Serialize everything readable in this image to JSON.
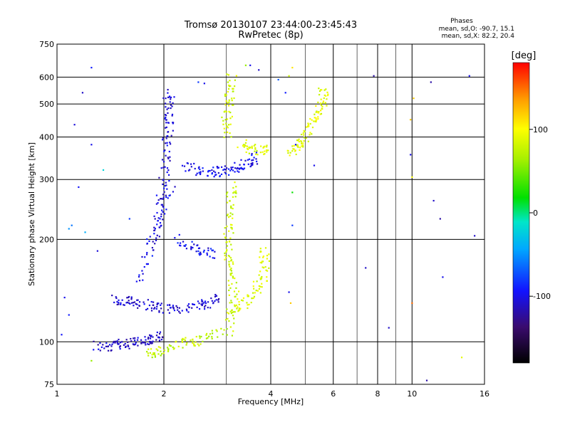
{
  "chart_data": {
    "type": "scatter",
    "title": "Tromsø 20130107 23:44:00-23:45:43",
    "subtitle": "RwPretec (8p)",
    "stats": {
      "heading": "Phases",
      "line1": "mean, sd,O: -90.7, 15.1",
      "line2": "mean, sd,X:  82.2, 20.4"
    },
    "xlabel": "Frequency [MHz]",
    "ylabel": "Stationary phase Virtual Height [km]",
    "xscale": "log",
    "yscale": "log",
    "xlim": [
      1,
      16
    ],
    "ylim": [
      75,
      750
    ],
    "x_ticks": [
      1,
      2,
      4,
      6,
      8,
      10,
      16
    ],
    "x_minor_ticks": [
      3,
      5,
      7,
      9
    ],
    "y_ticks": [
      75,
      100,
      200,
      300,
      400,
      500,
      600,
      750
    ],
    "grid": true,
    "colorbar": {
      "label": "[deg]",
      "range": [
        -180,
        180
      ],
      "ticks": [
        100,
        0,
        -100
      ]
    },
    "traces": [
      {
        "name": "",
        "phase": -110,
        "points": [
          [
            1.3,
            97
          ],
          [
            1.4,
            97
          ],
          [
            1.5,
            98
          ],
          [
            1.6,
            99
          ],
          [
            1.7,
            100
          ],
          [
            1.8,
            101
          ],
          [
            1.9,
            102
          ],
          [
            2.0,
            104
          ]
        ]
      },
      {
        "name": "",
        "phase": -108,
        "points": [
          [
            1.45,
            133
          ],
          [
            1.55,
            132
          ],
          [
            1.65,
            131
          ],
          [
            1.8,
            128
          ],
          [
            1.95,
            126
          ],
          [
            2.1,
            125
          ],
          [
            2.3,
            126
          ],
          [
            2.5,
            128
          ],
          [
            2.7,
            131
          ],
          [
            2.9,
            134
          ]
        ]
      },
      {
        "name": "",
        "phase": -105,
        "points": [
          [
            1.9,
            200
          ],
          [
            1.95,
            250
          ],
          [
            2.0,
            300
          ],
          [
            2.02,
            350
          ],
          [
            2.05,
            400
          ],
          [
            2.07,
            450
          ],
          [
            2.08,
            500
          ],
          [
            2.05,
            540
          ]
        ]
      },
      {
        "name": "",
        "phase": -100,
        "points": [
          [
            2.3,
            330
          ],
          [
            2.5,
            320
          ],
          [
            2.7,
            315
          ],
          [
            2.9,
            318
          ],
          [
            3.1,
            322
          ],
          [
            3.3,
            330
          ],
          [
            3.5,
            340
          ],
          [
            3.7,
            350
          ]
        ]
      },
      {
        "name": "",
        "phase": -100,
        "points": [
          [
            1.7,
            150
          ],
          [
            1.8,
            180
          ],
          [
            1.9,
            210
          ],
          [
            2.0,
            250
          ],
          [
            2.1,
            300
          ]
        ]
      },
      {
        "name": "",
        "phase": -98,
        "points": [
          [
            2.2,
            200
          ],
          [
            2.4,
            190
          ],
          [
            2.6,
            185
          ],
          [
            2.8,
            180
          ]
        ]
      },
      {
        "name": "",
        "phase": 80,
        "points": [
          [
            3.05,
            115
          ],
          [
            3.1,
            125
          ],
          [
            3.15,
            140
          ],
          [
            3.1,
            160
          ],
          [
            3.05,
            180
          ],
          [
            3.05,
            200
          ],
          [
            3.05,
            230
          ],
          [
            3.1,
            260
          ],
          [
            3.1,
            290
          ]
        ]
      },
      {
        "name": "",
        "phase": 82,
        "points": [
          [
            3.0,
            400
          ],
          [
            3.0,
            450
          ],
          [
            3.05,
            500
          ],
          [
            3.1,
            550
          ],
          [
            3.1,
            600
          ]
        ]
      },
      {
        "name": "",
        "phase": 85,
        "points": [
          [
            3.3,
            380
          ],
          [
            3.5,
            370
          ],
          [
            3.7,
            365
          ],
          [
            3.9,
            368
          ]
        ]
      },
      {
        "name": "",
        "phase": 88,
        "points": [
          [
            3.2,
            125
          ],
          [
            3.4,
            130
          ],
          [
            3.6,
            140
          ],
          [
            3.8,
            155
          ],
          [
            3.85,
            170
          ],
          [
            3.8,
            190
          ]
        ]
      },
      {
        "name": "",
        "phase": 90,
        "points": [
          [
            4.5,
            360
          ],
          [
            4.7,
            370
          ],
          [
            4.9,
            390
          ],
          [
            5.1,
            420
          ],
          [
            5.3,
            450
          ],
          [
            5.5,
            480
          ],
          [
            5.7,
            520
          ],
          [
            5.6,
            560
          ]
        ]
      },
      {
        "name": "",
        "phase": 75,
        "points": [
          [
            1.8,
            93
          ],
          [
            1.9,
            93
          ],
          [
            2.1,
            97
          ],
          [
            2.3,
            100
          ],
          [
            2.5,
            100
          ],
          [
            2.7,
            105
          ],
          [
            3.2,
            108
          ]
        ]
      }
    ],
    "scatter_points": [
      [
        1.25,
        640,
        -90
      ],
      [
        1.18,
        540,
        -110
      ],
      [
        1.12,
        435,
        -105
      ],
      [
        1.25,
        380,
        -100
      ],
      [
        1.15,
        285,
        -95
      ],
      [
        1.1,
        220,
        -60
      ],
      [
        1.08,
        215,
        -50
      ],
      [
        1.2,
        210,
        -40
      ],
      [
        1.3,
        185,
        -105
      ],
      [
        1.05,
        135,
        -100
      ],
      [
        1.08,
        120,
        -90
      ],
      [
        1.03,
        105,
        -95
      ],
      [
        1.25,
        88,
        60
      ],
      [
        1.35,
        320,
        -20
      ],
      [
        1.6,
        230,
        -80
      ],
      [
        2.6,
        575,
        -100
      ],
      [
        2.5,
        580,
        -80
      ],
      [
        3.5,
        650,
        -100
      ],
      [
        3.7,
        630,
        -110
      ],
      [
        3.4,
        650,
        60
      ],
      [
        4.5,
        605,
        80
      ],
      [
        4.6,
        640,
        110
      ],
      [
        4.2,
        590,
        -70
      ],
      [
        4.4,
        540,
        -90
      ],
      [
        4.7,
        380,
        -95
      ],
      [
        5.3,
        330,
        -100
      ],
      [
        4.6,
        275,
        20
      ],
      [
        4.6,
        220,
        -80
      ],
      [
        4.5,
        140,
        -100
      ],
      [
        4.55,
        130,
        120
      ],
      [
        7.8,
        605,
        -120
      ],
      [
        10.1,
        520,
        120
      ],
      [
        9.9,
        450,
        120
      ],
      [
        9.9,
        355,
        -100
      ],
      [
        10.0,
        305,
        100
      ],
      [
        11.3,
        580,
        -120
      ],
      [
        11.5,
        260,
        -110
      ],
      [
        12.0,
        230,
        -120
      ],
      [
        14.5,
        605,
        -100
      ],
      [
        15.0,
        205,
        -110
      ],
      [
        12.2,
        155,
        -100
      ],
      [
        7.4,
        165,
        -110
      ],
      [
        8.6,
        110,
        -110
      ],
      [
        10.0,
        130,
        150
      ],
      [
        11.0,
        77,
        -120
      ],
      [
        13.8,
        90,
        90
      ]
    ]
  }
}
